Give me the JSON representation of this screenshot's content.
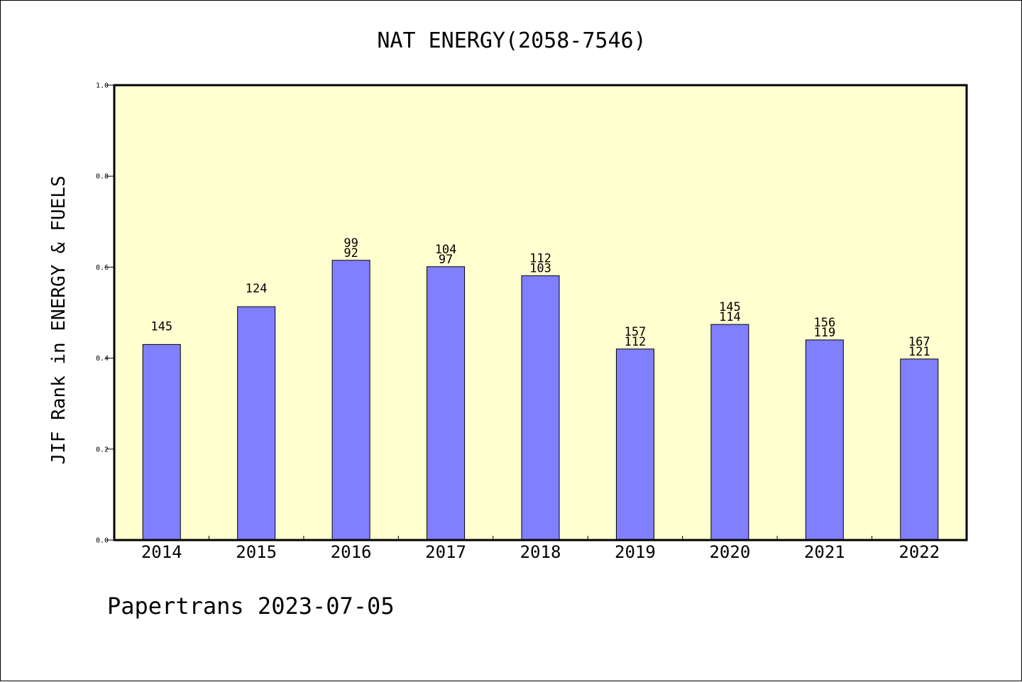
{
  "chart_data": {
    "type": "bar",
    "title": "NAT ENERGY(2058-7546)",
    "xlabel": "",
    "ylabel": "JIF Rank in ENERGY & FUELS",
    "ylim": [
      0,
      1.0
    ],
    "yticks": [
      "0.0",
      "0.2",
      "0.4",
      "0.6",
      "0.8",
      "1.0"
    ],
    "grid": false,
    "categories": [
      "2014",
      "2015",
      "2016",
      "2017",
      "2018",
      "2019",
      "2020",
      "2021",
      "2022"
    ],
    "values": [
      0.43,
      0.513,
      0.615,
      0.601,
      0.581,
      0.42,
      0.474,
      0.44,
      0.398
    ],
    "labels_top": [
      "145",
      "124",
      "99",
      "104",
      "112",
      "157",
      "145",
      "156",
      "167"
    ],
    "labels_bottom": [
      "",
      "",
      "92",
      "97",
      "103",
      "112",
      "114",
      "119",
      "121"
    ]
  },
  "colors": {
    "plot_background": "#ffffd0",
    "bar_fill": "#8080ff"
  },
  "footer": {
    "text": "Papertrans 2023-07-05"
  }
}
